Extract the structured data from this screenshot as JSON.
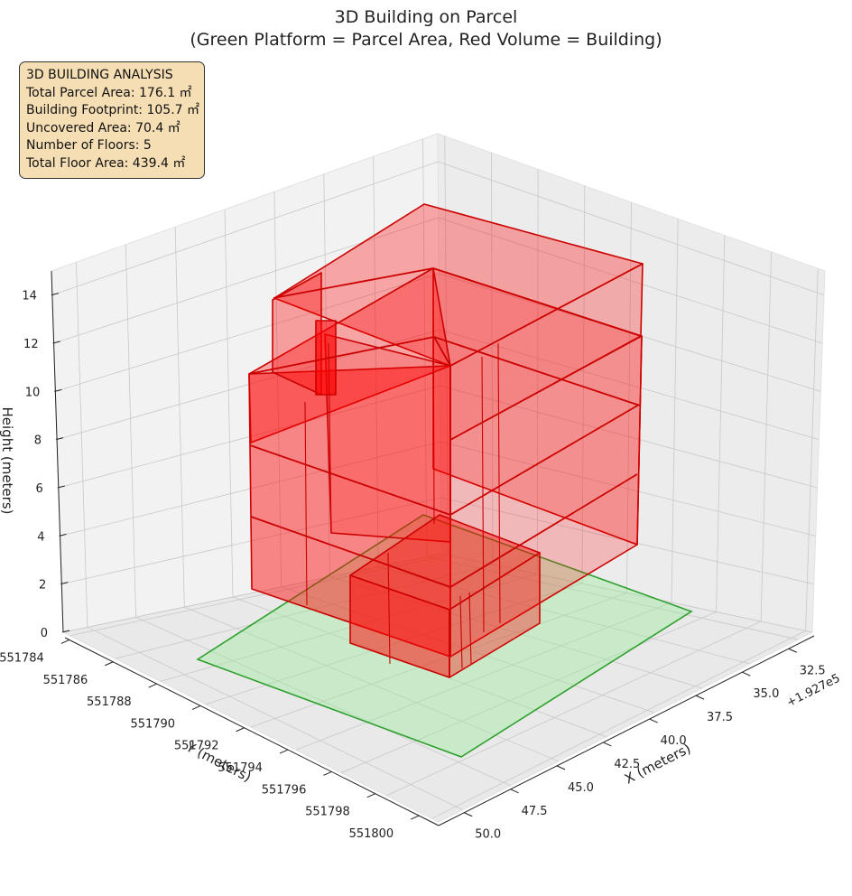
{
  "chart_data": {
    "type": "3d-box",
    "title": "3D Building on Parcel",
    "subtitle": "(Green Platform = Parcel Area, Red Volume = Building)",
    "xlabel": "X (meters)",
    "ylabel": "Y (meters)",
    "zlabel": "Height (meters)",
    "x_offset_label": "+1.927e5",
    "x_ticks": [
      "32.5",
      "35.0",
      "37.5",
      "40.0",
      "42.5",
      "45.0",
      "47.5",
      "50.0"
    ],
    "y_ticks": [
      "551784",
      "551786",
      "551788",
      "551790",
      "551792",
      "551794",
      "551796",
      "551798",
      "551800"
    ],
    "z_ticks": [
      "0",
      "2",
      "4",
      "6",
      "8",
      "10",
      "12",
      "14"
    ],
    "zlim": [
      0,
      15
    ],
    "grid": true,
    "colors": {
      "parcel_fill": "#90ee90",
      "parcel_edge": "#2ca02c",
      "building_fill": "#ff0000",
      "building_edge": "#cc0000",
      "pane": "#f2f2f2",
      "grid": "#c8c8c8"
    },
    "parcel_area_m2": 176.1,
    "building_footprint_m2": 105.7,
    "floors": 5
  },
  "info": {
    "heading": "3D BUILDING ANALYSIS",
    "lines": [
      "Total Parcel Area: 176.1 ㎡",
      "Building Footprint: 105.7 ㎡",
      "Uncovered Area: 70.4 ㎡",
      "Number of Floors: 5",
      "Total Floor Area: 439.4 ㎡"
    ]
  }
}
